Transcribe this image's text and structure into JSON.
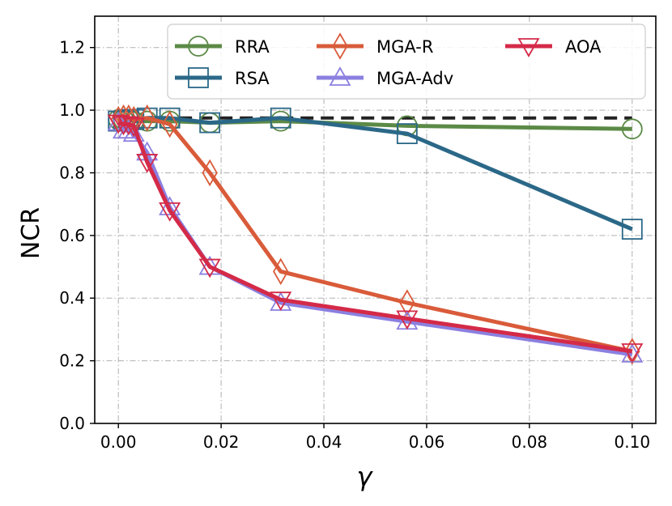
{
  "chart_data": {
    "type": "line",
    "xlabel": "γ",
    "ylabel": "NCR",
    "xlim": [
      -0.0046,
      0.1046
    ],
    "ylim": [
      0.0,
      1.3
    ],
    "xticks": [
      0.0,
      0.02,
      0.04,
      0.06,
      0.08,
      0.1
    ],
    "xtick_labels": [
      "0.00",
      "0.02",
      "0.04",
      "0.06",
      "0.08",
      "0.10"
    ],
    "yticks": [
      0.0,
      0.2,
      0.4,
      0.6,
      0.8,
      1.0,
      1.2
    ],
    "ytick_labels": [
      "0.0",
      "0.2",
      "0.4",
      "0.6",
      "0.8",
      "1.0",
      "1.2"
    ],
    "grid": true,
    "legend_position": "top-right",
    "reference_line": {
      "y": 0.975,
      "style": "dashed",
      "color": "#222222"
    },
    "series": [
      {
        "name": "RRA",
        "color": "#5b8a46",
        "marker": "circle",
        "x": [
          0.0,
          0.001,
          0.002,
          0.003,
          0.0056,
          0.01,
          0.0178,
          0.0316,
          0.0562,
          0.1
        ],
        "y": [
          0.97,
          0.97,
          0.97,
          0.965,
          0.965,
          0.965,
          0.96,
          0.965,
          0.95,
          0.94
        ]
      },
      {
        "name": "RSA",
        "color": "#2b6888",
        "marker": "square",
        "x": [
          0.0,
          0.001,
          0.002,
          0.003,
          0.0056,
          0.01,
          0.0178,
          0.0316,
          0.0562,
          0.1
        ],
        "y": [
          0.965,
          0.965,
          0.97,
          0.97,
          0.975,
          0.975,
          0.96,
          0.975,
          0.925,
          0.62
        ]
      },
      {
        "name": "MGA-R",
        "color": "#d95b3a",
        "marker": "diamond",
        "x": [
          0.0,
          0.001,
          0.002,
          0.003,
          0.0056,
          0.01,
          0.0178,
          0.0316,
          0.0562,
          0.1
        ],
        "y": [
          0.97,
          0.975,
          0.975,
          0.97,
          0.975,
          0.955,
          0.8,
          0.485,
          0.385,
          0.23
        ]
      },
      {
        "name": "MGA-Adv",
        "color": "#8b80e0",
        "marker": "triangle-up",
        "x": [
          0.0,
          0.001,
          0.002,
          0.003,
          0.0056,
          0.01,
          0.0178,
          0.0316,
          0.0562,
          0.1
        ],
        "y": [
          0.96,
          0.935,
          0.935,
          0.925,
          0.865,
          0.69,
          0.5,
          0.385,
          0.325,
          0.22
        ]
      },
      {
        "name": "AOA",
        "color": "#d42a48",
        "marker": "triangle-down",
        "x": [
          0.0,
          0.001,
          0.002,
          0.003,
          0.0056,
          0.01,
          0.0178,
          0.0316,
          0.0562,
          0.1
        ],
        "y": [
          0.96,
          0.955,
          0.955,
          0.95,
          0.835,
          0.68,
          0.5,
          0.395,
          0.335,
          0.23
        ]
      }
    ]
  }
}
